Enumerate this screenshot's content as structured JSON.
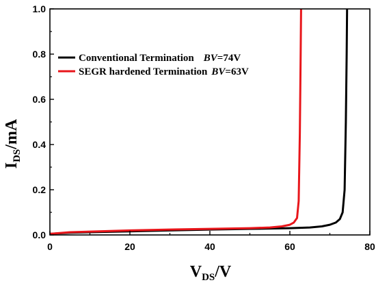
{
  "chart_data": {
    "type": "line",
    "xlabel": {
      "main": "V",
      "sub": "DS",
      "unit": "/V"
    },
    "ylabel": {
      "main": "I",
      "sub": "DS",
      "unit": "/mA"
    },
    "xlim": [
      0,
      80
    ],
    "ylim": [
      0,
      1.0
    ],
    "x_ticks": [
      "0",
      "20",
      "40",
      "60",
      "80"
    ],
    "y_ticks": [
      "0.0",
      "0.2",
      "0.4",
      "0.6",
      "0.8",
      "1.0"
    ],
    "x_tick_values": [
      0,
      20,
      40,
      60,
      80
    ],
    "y_tick_values": [
      0,
      0.2,
      0.4,
      0.6,
      0.8,
      1.0
    ],
    "grid": false,
    "legend_position": "top-left",
    "series": [
      {
        "name": "Conventional Termination",
        "bv_label": "BV",
        "bv_value": "=74V",
        "color": "#000000",
        "x": [
          0,
          5,
          10,
          20,
          30,
          40,
          50,
          60,
          65,
          68,
          70,
          71.5,
          72.5,
          73.2,
          73.7,
          74.0,
          74.2,
          74.3
        ],
        "y": [
          0.005,
          0.01,
          0.012,
          0.016,
          0.02,
          0.024,
          0.027,
          0.03,
          0.033,
          0.038,
          0.045,
          0.055,
          0.07,
          0.1,
          0.2,
          0.5,
          0.8,
          1.0
        ]
      },
      {
        "name": "SEGR hardened Termination",
        "bv_label": "BV",
        "bv_value": "=63V",
        "color": "#e8161b",
        "x": [
          0,
          5,
          10,
          20,
          30,
          40,
          50,
          55,
          58,
          60,
          61,
          61.8,
          62.2,
          62.5,
          62.7,
          62.8
        ],
        "y": [
          0.005,
          0.012,
          0.015,
          0.02,
          0.024,
          0.027,
          0.03,
          0.033,
          0.038,
          0.045,
          0.055,
          0.075,
          0.15,
          0.45,
          0.8,
          1.0
        ]
      }
    ]
  }
}
